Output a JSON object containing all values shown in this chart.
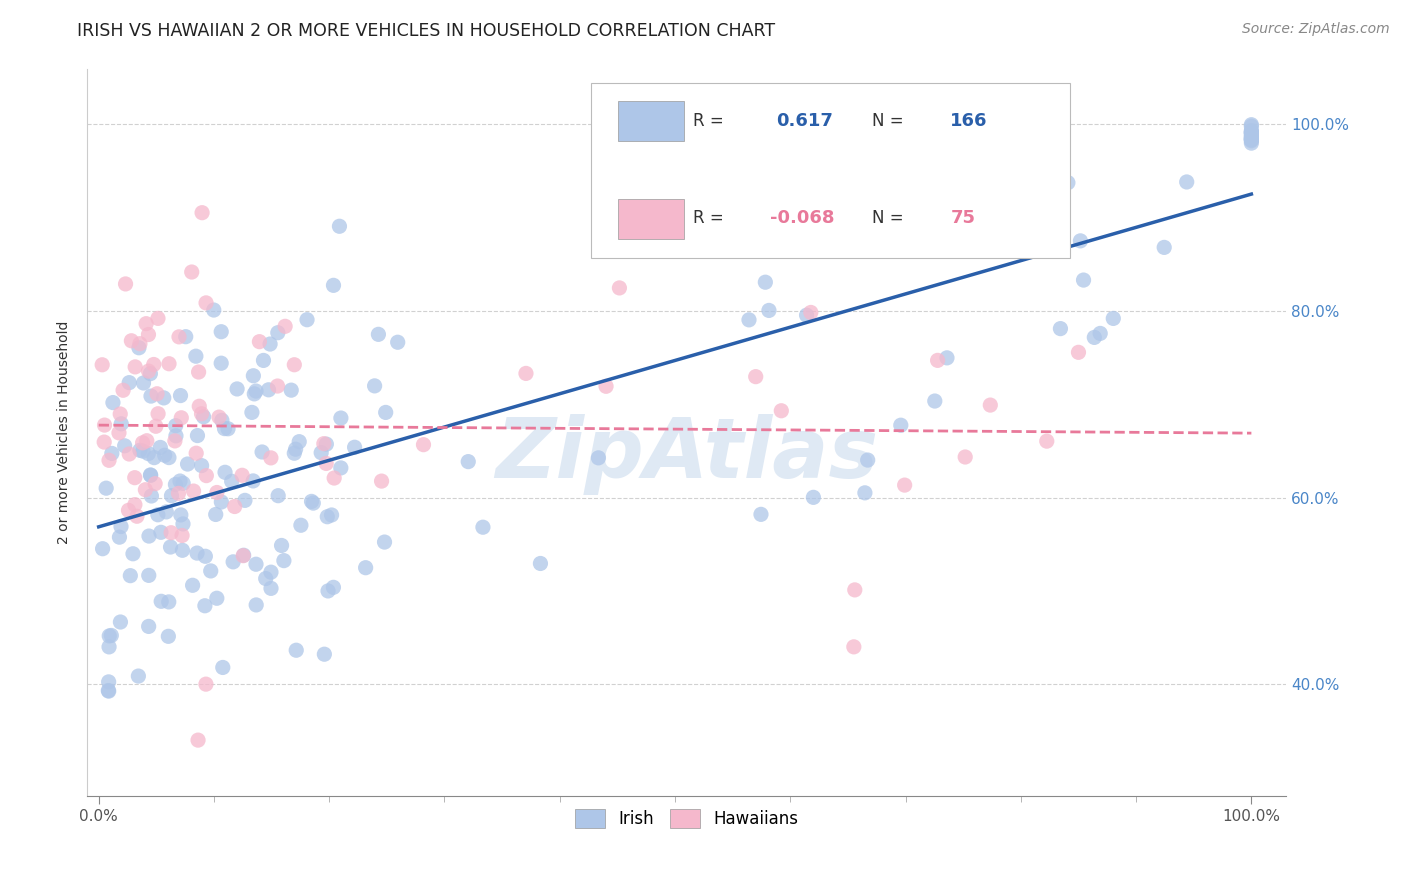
{
  "title": "IRISH VS HAWAIIAN 2 OR MORE VEHICLES IN HOUSEHOLD CORRELATION CHART",
  "source": "Source: ZipAtlas.com",
  "ylabel": "2 or more Vehicles in Household",
  "irish_R": 0.617,
  "irish_N": 166,
  "hawaiian_R": -0.068,
  "hawaiian_N": 75,
  "irish_color": "#aec6e8",
  "hawaiian_color": "#f5b8cc",
  "irish_line_color": "#2a5faa",
  "hawaiian_line_color": "#e8799a",
  "watermark": "ZipAtlas",
  "watermark_color": "#b8cfe8",
  "ylim_low": 0.28,
  "ylim_high": 1.06,
  "y_ticks": [
    0.4,
    0.6,
    0.8,
    1.0
  ],
  "y_tick_labels": [
    "40.0%",
    "60.0%",
    "80.0%",
    "100.0%"
  ],
  "x_tick_labels_left": "0.0%",
  "x_tick_labels_right": "100.0%",
  "legend_label_irish": "Irish",
  "legend_label_hawaiian": "Hawaiians",
  "title_fontsize": 12.5,
  "axis_label_fontsize": 10,
  "tick_fontsize": 11
}
